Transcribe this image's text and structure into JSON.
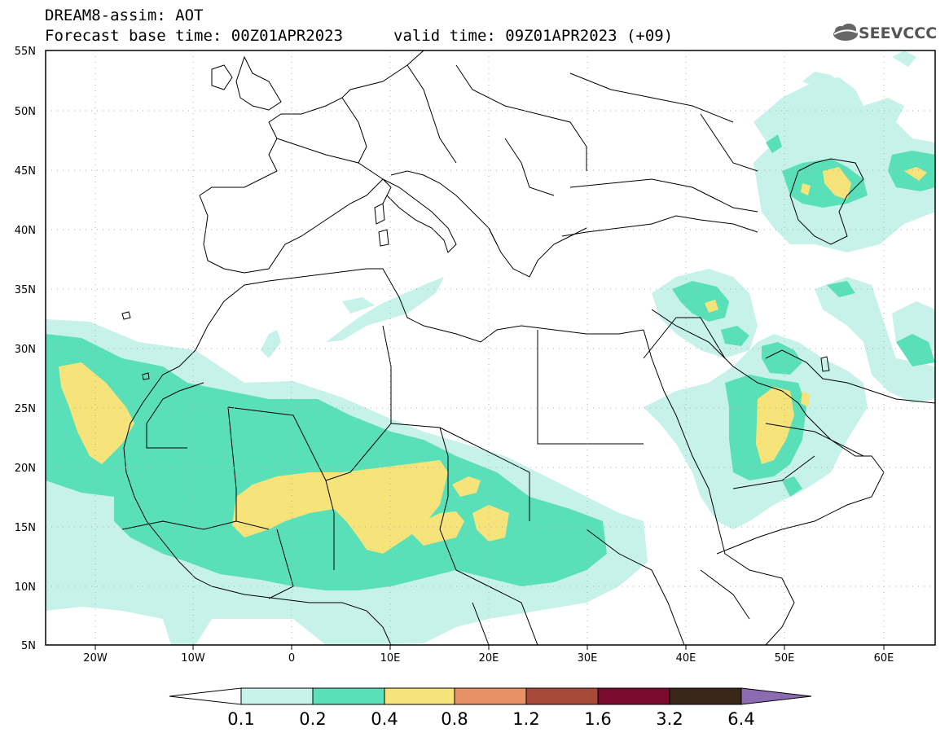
{
  "header": {
    "title_line1": "DREAM8-assim: AOT",
    "title_line2": "Forecast base time: 00Z01APR2023",
    "valid_time": "valid time: 09Z01APR2023 (+09)"
  },
  "logo": {
    "text": "SEEVCCC",
    "icon": "cloud-icon"
  },
  "map": {
    "lon_labels": [
      "20W",
      "10W",
      "0",
      "10E",
      "20E",
      "30E",
      "40E",
      "50E",
      "60E"
    ],
    "lat_labels": [
      "55N",
      "50N",
      "45N",
      "40N",
      "35N",
      "30N",
      "25N",
      "20N",
      "15N",
      "10N",
      "5N"
    ],
    "extent": {
      "lon": [
        -25,
        65
      ],
      "lat": [
        5,
        55
      ]
    }
  },
  "colorbar": {
    "levels": [
      "0.1",
      "0.2",
      "0.4",
      "0.8",
      "1.2",
      "1.6",
      "3.2",
      "6.4"
    ],
    "colors": [
      "#c6f2ea",
      "#5ae0b8",
      "#f6e37a",
      "#e89066",
      "#a84a3a",
      "#7a0a2e",
      "#3a2618"
    ],
    "over_color": "#8c6bb1",
    "under_color": "#ffffff"
  }
}
